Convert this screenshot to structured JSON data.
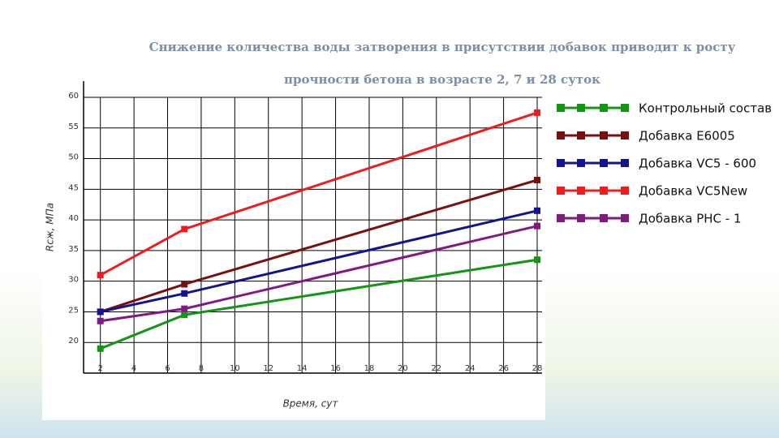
{
  "chart_data": {
    "type": "line",
    "title": "Снижение количества воды затворения в присутствии добавок приводит к росту прочности бетона в возрасте 2, 7 и 28 суток",
    "x_label": "Время, сут",
    "y_label": "Rсж, МПа",
    "x": [
      2,
      7,
      28
    ],
    "series": [
      {
        "name": "Контрольный состав",
        "color": "#149614",
        "values": [
          19,
          24.5,
          33.5
        ]
      },
      {
        "name": "Добавка Е6005",
        "color": "#7a0f0f",
        "values": [
          25,
          29.5,
          46.5
        ]
      },
      {
        "name": "Добавка VC5 - 600",
        "color": "#14148c",
        "values": [
          25,
          28,
          41.5
        ]
      },
      {
        "name": "Добавка VC5New",
        "color": "#ee1c1c",
        "values": [
          31,
          38.5,
          57.5
        ]
      },
      {
        "name": "Добавка PHC - 1",
        "color": "#801a80",
        "values": [
          23.5,
          25.5,
          39
        ]
      }
    ],
    "xlim": [
      1,
      28
    ],
    "xticks": [
      2,
      4,
      6,
      8,
      10,
      12,
      14,
      16,
      18,
      20,
      22,
      24,
      26,
      28
    ],
    "ylim": [
      15,
      60
    ],
    "yticks": [
      20,
      25,
      30,
      35,
      40,
      45,
      50,
      55,
      60
    ],
    "grid": true,
    "legend": "right"
  }
}
